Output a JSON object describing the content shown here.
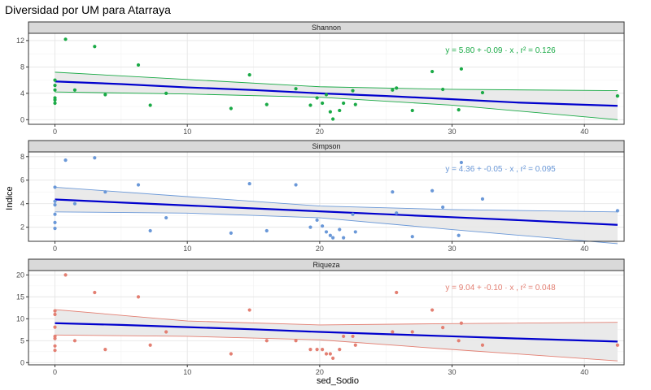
{
  "chart_data": {
    "type": "scatter",
    "title": "Diversidad por UM para Atarraya",
    "xlabel": "sed_Sodio",
    "ylabel": "Indice",
    "xlim": [
      -2,
      43
    ],
    "xticks": [
      0,
      10,
      20,
      30,
      40
    ],
    "grid": true,
    "legend": "none",
    "trend_color": "#0000cd",
    "band_color": "#e8e8e8",
    "panels": [
      {
        "name": "Shannon",
        "color": "#1aaa46",
        "ylim": [
          -0.7,
          13.1
        ],
        "yticks": [
          0,
          4,
          8,
          12
        ],
        "equation": "y = 5.80 + -0.09 · x ,  r² = 0.126",
        "band": [
          [
            0,
            4.2,
            7.2
          ],
          [
            10,
            3.9,
            6.1
          ],
          [
            20,
            3.4,
            5.0
          ],
          [
            30,
            2.2,
            4.6
          ],
          [
            42.5,
            0.0,
            4.4
          ]
        ],
        "trend": [
          [
            0,
            5.8
          ],
          [
            5,
            5.4
          ],
          [
            10,
            4.9
          ],
          [
            15,
            4.5
          ],
          [
            20,
            4.0
          ],
          [
            25,
            3.6
          ],
          [
            30,
            3.1
          ],
          [
            35,
            2.6
          ],
          [
            42.5,
            2.1
          ]
        ],
        "points": [
          [
            0,
            2.5
          ],
          [
            0,
            3.0
          ],
          [
            0,
            3.3
          ],
          [
            0,
            4.5
          ],
          [
            0,
            5.2
          ],
          [
            0,
            6.0
          ],
          [
            0.8,
            12.2
          ],
          [
            1.5,
            4.5
          ],
          [
            3,
            11.1
          ],
          [
            3.8,
            3.8
          ],
          [
            6.3,
            8.3
          ],
          [
            7.2,
            2.2
          ],
          [
            8.4,
            4.0
          ],
          [
            13.3,
            1.7
          ],
          [
            14.7,
            6.8
          ],
          [
            16,
            2.3
          ],
          [
            18.2,
            4.7
          ],
          [
            19.3,
            2.2
          ],
          [
            19.8,
            3.3
          ],
          [
            20.2,
            2.5
          ],
          [
            20.5,
            3.8
          ],
          [
            20.8,
            1.2
          ],
          [
            21,
            0.1
          ],
          [
            21.5,
            1.4
          ],
          [
            21.8,
            2.5
          ],
          [
            22.5,
            4.4
          ],
          [
            22.7,
            2.3
          ],
          [
            25.5,
            4.5
          ],
          [
            25.8,
            4.8
          ],
          [
            27,
            1.4
          ],
          [
            28.5,
            7.3
          ],
          [
            29.3,
            4.6
          ],
          [
            30.5,
            1.5
          ],
          [
            30.7,
            7.7
          ],
          [
            32.3,
            4.1
          ],
          [
            42.5,
            3.6
          ]
        ]
      },
      {
        "name": "Simpson",
        "color": "#6a98d8",
        "ylim": [
          0.8,
          8.4
        ],
        "yticks": [
          2,
          4,
          6,
          8
        ],
        "equation": "y = 4.36 + -0.05 · x ,  r² = 0.095",
        "band": [
          [
            0,
            3.3,
            5.4
          ],
          [
            10,
            3.2,
            4.6
          ],
          [
            20,
            2.8,
            3.8
          ],
          [
            30,
            1.8,
            3.5
          ],
          [
            42.5,
            0.6,
            3.3
          ]
        ],
        "trend": [
          [
            0,
            4.36
          ],
          [
            5,
            4.1
          ],
          [
            10,
            3.85
          ],
          [
            15,
            3.6
          ],
          [
            20,
            3.35
          ],
          [
            25,
            3.1
          ],
          [
            30,
            2.85
          ],
          [
            35,
            2.6
          ],
          [
            42.5,
            2.2
          ]
        ],
        "points": [
          [
            0,
            1.9
          ],
          [
            0,
            2.4
          ],
          [
            0,
            3.1
          ],
          [
            0,
            3.9
          ],
          [
            0,
            4.2
          ],
          [
            0,
            5.4
          ],
          [
            0.8,
            7.7
          ],
          [
            1.5,
            4.0
          ],
          [
            3,
            7.9
          ],
          [
            3.8,
            5.0
          ],
          [
            6.3,
            5.6
          ],
          [
            7.2,
            1.7
          ],
          [
            8.4,
            2.8
          ],
          [
            13.3,
            1.5
          ],
          [
            14.7,
            5.7
          ],
          [
            16,
            1.7
          ],
          [
            18.2,
            5.6
          ],
          [
            19.3,
            2.0
          ],
          [
            19.8,
            2.6
          ],
          [
            20.2,
            2.1
          ],
          [
            20.5,
            1.6
          ],
          [
            20.8,
            1.3
          ],
          [
            21,
            1.1
          ],
          [
            21.5,
            1.8
          ],
          [
            21.8,
            1.1
          ],
          [
            22.5,
            3.1
          ],
          [
            22.7,
            1.6
          ],
          [
            25.5,
            5.0
          ],
          [
            25.8,
            3.2
          ],
          [
            27,
            1.2
          ],
          [
            28.5,
            5.1
          ],
          [
            29.3,
            3.7
          ],
          [
            30.5,
            1.3
          ],
          [
            30.7,
            7.5
          ],
          [
            32.3,
            4.4
          ],
          [
            42.5,
            3.4
          ]
        ]
      },
      {
        "name": "Riqueza",
        "color": "#e37f72",
        "ylim": [
          -0.5,
          21
        ],
        "yticks": [
          0,
          5,
          10,
          15,
          20
        ],
        "equation": "y = 9.04 + -0.10 · x ,  r² = 0.048",
        "band": [
          [
            0,
            6.3,
            12.1
          ],
          [
            10,
            6.0,
            9.5
          ],
          [
            20,
            5.2,
            8.6
          ],
          [
            30,
            3.0,
            8.9
          ],
          [
            42.5,
            0.4,
            9.2
          ]
        ],
        "trend": [
          [
            0,
            9.0
          ],
          [
            5,
            8.6
          ],
          [
            10,
            8.1
          ],
          [
            15,
            7.6
          ],
          [
            20,
            7.0
          ],
          [
            25,
            6.5
          ],
          [
            30,
            6.0
          ],
          [
            35,
            5.5
          ],
          [
            42.5,
            4.8
          ]
        ],
        "points": [
          [
            0,
            2.8
          ],
          [
            0,
            3.8
          ],
          [
            0,
            5.5
          ],
          [
            0,
            6.0
          ],
          [
            0,
            8.1
          ],
          [
            0,
            11.0
          ],
          [
            0,
            11.8
          ],
          [
            0.8,
            20.0
          ],
          [
            1.5,
            5.0
          ],
          [
            3,
            16.0
          ],
          [
            3.8,
            3.0
          ],
          [
            6.3,
            15.0
          ],
          [
            7.2,
            4.0
          ],
          [
            8.4,
            7.0
          ],
          [
            13.3,
            2.0
          ],
          [
            14.7,
            12.0
          ],
          [
            16,
            5.0
          ],
          [
            18.2,
            5.0
          ],
          [
            19.3,
            3.0
          ],
          [
            19.8,
            3.0
          ],
          [
            20.2,
            3.0
          ],
          [
            20.5,
            2.0
          ],
          [
            20.8,
            2.0
          ],
          [
            21,
            1.0
          ],
          [
            21.5,
            3.0
          ],
          [
            21.8,
            6.0
          ],
          [
            22.5,
            6.0
          ],
          [
            22.7,
            4.0
          ],
          [
            25.5,
            7.0
          ],
          [
            25.8,
            16.0
          ],
          [
            27,
            7.0
          ],
          [
            28.5,
            12.0
          ],
          [
            29.3,
            8.0
          ],
          [
            30.5,
            5.0
          ],
          [
            30.7,
            9.0
          ],
          [
            32.3,
            4.0
          ],
          [
            42.5,
            4.0
          ]
        ]
      }
    ]
  }
}
